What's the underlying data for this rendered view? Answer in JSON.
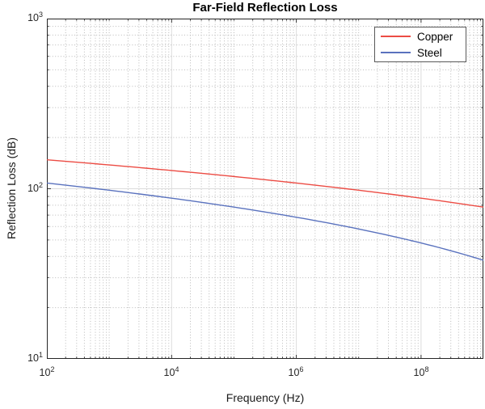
{
  "chart": {
    "title": "Far-Field Reflection Loss",
    "xlabel": "Frequency (Hz)",
    "ylabel": "Reflection Loss (dB)",
    "x_ticks": [
      {
        "base": "10",
        "exp": "2"
      },
      {
        "base": "10",
        "exp": "4"
      },
      {
        "base": "10",
        "exp": "6"
      },
      {
        "base": "10",
        "exp": "8"
      }
    ],
    "y_ticks": [
      {
        "base": "10",
        "exp": "3"
      },
      {
        "base": "10",
        "exp": "2"
      },
      {
        "base": "10",
        "exp": "1"
      }
    ],
    "legend": [
      {
        "label": "Copper",
        "color": "#ec4c44"
      },
      {
        "label": "Steel",
        "color": "#5a72be"
      }
    ]
  },
  "chart_data": {
    "type": "line",
    "title": "Far-Field Reflection Loss",
    "xlabel": "Frequency (Hz)",
    "ylabel": "Reflection Loss (dB)",
    "x_scale": "log",
    "y_scale": "log",
    "xlim": [
      100,
      1000000000
    ],
    "ylim": [
      10,
      1000
    ],
    "x_tick_values": [
      100,
      10000,
      1000000,
      100000000
    ],
    "y_tick_values": [
      10,
      100,
      1000
    ],
    "grid": "major solid light gray, minor dotted gray (log decades)",
    "legend_position": "top-right inside axes",
    "x": [
      100,
      1000,
      10000,
      100000,
      1000000,
      10000000,
      100000000,
      1000000000
    ],
    "series": [
      {
        "name": "Copper",
        "color": "#ec4c44",
        "values": [
          148,
          138,
          128,
          118,
          108,
          98,
          88,
          78
        ]
      },
      {
        "name": "Steel",
        "color": "#5a72be",
        "values": [
          108,
          98,
          88,
          78,
          68,
          58,
          48,
          38
        ]
      }
    ]
  }
}
